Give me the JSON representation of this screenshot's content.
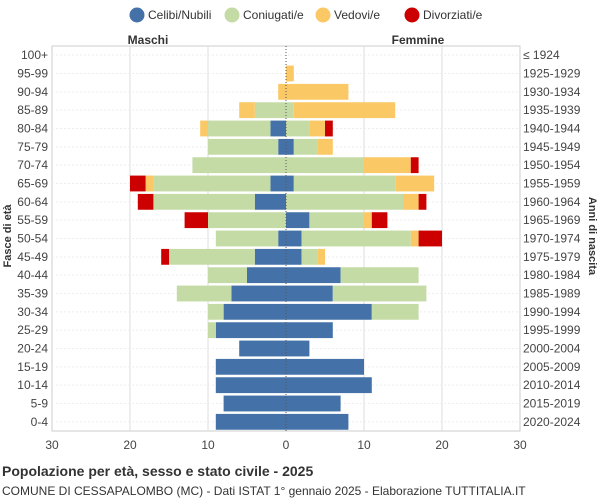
{
  "chart_data": {
    "type": "bar",
    "orientation": "horizontal-population-pyramid",
    "left_side_label": "Maschi",
    "right_side_label": "Femmine",
    "ylabel_left": "Fasce di età",
    "ylabel_right": "Anni di nascita",
    "xlim": [
      -30,
      30
    ],
    "x_ticks": [
      "30",
      "20",
      "10",
      "0",
      "10",
      "20",
      "30"
    ],
    "x_tick_values": [
      -30,
      -20,
      -10,
      0,
      10,
      20,
      30
    ],
    "grid": true,
    "legend_position": "top",
    "categories": [
      "100+",
      "95-99",
      "90-94",
      "85-89",
      "80-84",
      "75-79",
      "70-74",
      "65-69",
      "60-64",
      "55-59",
      "50-54",
      "45-49",
      "40-44",
      "35-39",
      "30-34",
      "25-29",
      "20-24",
      "15-19",
      "10-14",
      "5-9",
      "0-4"
    ],
    "birth_years": [
      "≤ 1924",
      "1925-1929",
      "1930-1934",
      "1935-1939",
      "1940-1944",
      "1945-1949",
      "1950-1954",
      "1955-1959",
      "1960-1964",
      "1965-1969",
      "1970-1974",
      "1975-1979",
      "1980-1984",
      "1985-1989",
      "1990-1994",
      "1995-1999",
      "2000-2004",
      "2005-2009",
      "2010-2014",
      "2015-2019",
      "2020-2024"
    ],
    "series": [
      {
        "name": "Celibi/Nubili",
        "color": "#4472a8",
        "male": [
          0,
          0,
          0,
          0,
          2,
          1,
          0,
          2,
          4,
          0,
          1,
          4,
          5,
          7,
          8,
          9,
          6,
          9,
          9,
          8,
          9
        ],
        "female": [
          0,
          0,
          0,
          0,
          0,
          1,
          0,
          1,
          0,
          3,
          2,
          2,
          7,
          6,
          11,
          6,
          3,
          10,
          11,
          7,
          8
        ]
      },
      {
        "name": "Coniugati/e",
        "color": "#c5dba5",
        "male": [
          0,
          0,
          0,
          4,
          8,
          9,
          12,
          15,
          13,
          10,
          8,
          11,
          5,
          7,
          2,
          1,
          0,
          0,
          0,
          0,
          0
        ],
        "female": [
          0,
          0,
          0,
          1,
          3,
          3,
          10,
          13,
          15,
          7,
          14,
          2,
          10,
          12,
          6,
          0,
          0,
          0,
          0,
          0,
          0
        ]
      },
      {
        "name": "Vedovi/e",
        "color": "#fac864",
        "male": [
          0,
          0,
          1,
          2,
          1,
          0,
          0,
          1,
          0,
          0,
          0,
          0,
          0,
          0,
          0,
          0,
          0,
          0,
          0,
          0,
          0
        ],
        "female": [
          0,
          1,
          8,
          13,
          2,
          2,
          6,
          5,
          2,
          1,
          1,
          1,
          0,
          0,
          0,
          0,
          0,
          0,
          0,
          0,
          0
        ]
      },
      {
        "name": "Divorziati/e",
        "color": "#cc0000",
        "male": [
          0,
          0,
          0,
          0,
          0,
          0,
          0,
          2,
          2,
          3,
          0,
          1,
          0,
          0,
          0,
          0,
          0,
          0,
          0,
          0,
          0
        ],
        "female": [
          0,
          0,
          0,
          0,
          1,
          0,
          1,
          0,
          1,
          2,
          3,
          0,
          0,
          0,
          0,
          0,
          0,
          0,
          0,
          0,
          0
        ]
      }
    ]
  },
  "footer": {
    "title": "Popolazione per età, sesso e stato civile - 2025",
    "subtitle": "COMUNE DI CESSAPALOMBO (MC) - Dati ISTAT 1° gennaio 2025 - Elaborazione TUTTITALIA.IT"
  }
}
